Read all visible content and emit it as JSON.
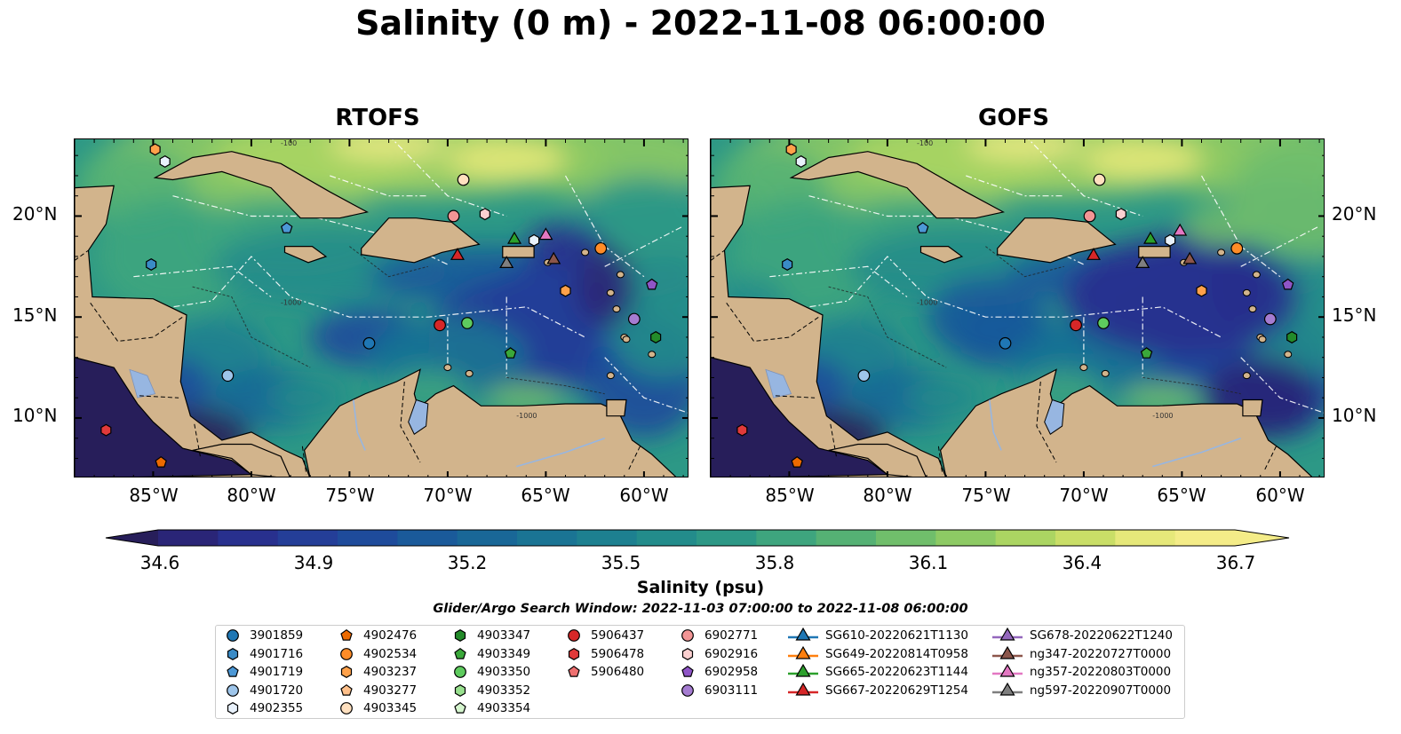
{
  "title": "Salinity (0 m) - 2022-11-08 06:00:00",
  "panels": [
    {
      "title": "RTOFS"
    },
    {
      "title": "GOFS"
    }
  ],
  "axes": {
    "lat_labels": [
      "20°N",
      "15°N",
      "10°N"
    ],
    "lon_labels": [
      "85°W",
      "80°W",
      "75°W",
      "70°W",
      "65°W",
      "60°W"
    ]
  },
  "contour_labels": [
    "-100",
    "-1000",
    "-100",
    "-1000"
  ],
  "colors": {
    "land": "#d2b48c",
    "lakes": "#97b6e1",
    "colormap": [
      "#271e5a",
      "#2a2577",
      "#28308e",
      "#243e98",
      "#1e4b9b",
      "#1a5a9a",
      "#196797",
      "#1a7494",
      "#1d8090",
      "#238c8b",
      "#2d9886",
      "#3ea57e",
      "#55b174",
      "#70be6b",
      "#8dca64",
      "#abd562",
      "#c9de67",
      "#e6e87a",
      "#f4ec88"
    ]
  },
  "colorbar": {
    "label": "Salinity (psu)",
    "ticks": [
      "34.6",
      "34.9",
      "35.2",
      "35.5",
      "35.8",
      "36.1",
      "36.4",
      "36.7"
    ],
    "min": 34.6,
    "max": 36.7
  },
  "search_window": "Glider/Argo Search Window: 2022-11-03 07:00:00 to 2022-11-08 06:00:00",
  "legend": [
    {
      "label": "3901859",
      "marker": "circle",
      "color": "#1f77b4"
    },
    {
      "label": "4901716",
      "marker": "hexagon",
      "color": "#3a8bc6"
    },
    {
      "label": "4901719",
      "marker": "pentagon",
      "color": "#4c98d6"
    },
    {
      "label": "4901720",
      "marker": "circle",
      "color": "#9ec5ea"
    },
    {
      "label": "4902355",
      "marker": "hexagon",
      "color": "#e8f1fb"
    },
    {
      "label": "4902476",
      "marker": "pentagon",
      "color": "#ec6a00"
    },
    {
      "label": "4902534",
      "marker": "circle",
      "color": "#ff8c27"
    },
    {
      "label": "4903237",
      "marker": "hexagon",
      "color": "#ffa14a"
    },
    {
      "label": "4903277",
      "marker": "pentagon",
      "color": "#ffc08a"
    },
    {
      "label": "4903345",
      "marker": "circle",
      "color": "#ffe0bf"
    },
    {
      "label": "4903347",
      "marker": "hexagon",
      "color": "#238b2a"
    },
    {
      "label": "4903349",
      "marker": "pentagon",
      "color": "#3aa83a"
    },
    {
      "label": "4903350",
      "marker": "circle",
      "color": "#5ecb5e"
    },
    {
      "label": "4903352",
      "marker": "hexagon",
      "color": "#98e08e"
    },
    {
      "label": "4903354",
      "marker": "pentagon",
      "color": "#d5f5ce"
    },
    {
      "label": "5906437",
      "marker": "circle",
      "color": "#d62728"
    },
    {
      "label": "5906478",
      "marker": "hexagon",
      "color": "#e03a3a"
    },
    {
      "label": "5906480",
      "marker": "pentagon",
      "color": "#ee7070"
    },
    {
      "label": "6902771",
      "marker": "circle",
      "color": "#f29595"
    },
    {
      "label": "6902916",
      "marker": "hexagon",
      "color": "#fbd0d0"
    },
    {
      "label": "6902958",
      "marker": "pentagon",
      "color": "#8f55c7"
    },
    {
      "label": "6903111",
      "marker": "circle",
      "color": "#a57cd1"
    },
    {
      "label": "SG610-20220621T1130",
      "marker": "triangle",
      "color": "#1f77b4"
    },
    {
      "label": "SG649-20220814T0958",
      "marker": "triangle",
      "color": "#ff7f0e"
    },
    {
      "label": "SG665-20220623T1144",
      "marker": "triangle",
      "color": "#2ca02c"
    },
    {
      "label": "SG667-20220629T1254",
      "marker": "triangle",
      "color": "#d62728"
    },
    {
      "label": "SG678-20220622T1240",
      "marker": "triangle",
      "color": "#9467bd"
    },
    {
      "label": "ng347-20220727T0000",
      "marker": "triangle",
      "color": "#8c564b"
    },
    {
      "label": "ng357-20220803T0000",
      "marker": "triangle",
      "color": "#e377c2"
    },
    {
      "label": "ng597-20220907T0000",
      "marker": "triangle",
      "color": "#7f7f7f"
    }
  ]
}
